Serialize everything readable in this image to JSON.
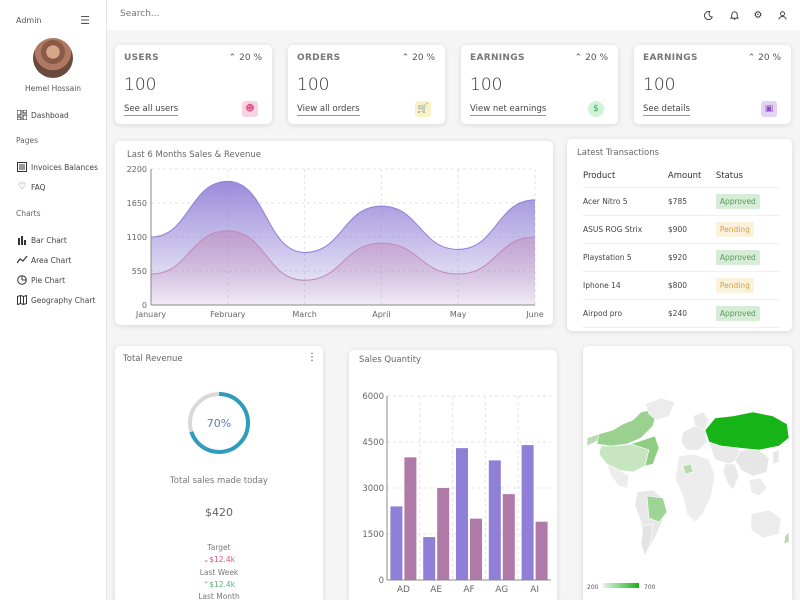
{
  "sidebar": {
    "brand": "Admin",
    "user_name": "Hemel Hossain",
    "items": [
      {
        "label": "Dashboad",
        "icon": "dashboard-icon"
      },
      {
        "label": "Invoices Balances",
        "icon": "invoice-icon"
      },
      {
        "label": "FAQ",
        "icon": "heart-icon"
      },
      {
        "label": "Bar Chart",
        "icon": "bar-chart-icon"
      },
      {
        "label": "Area Chart",
        "icon": "area-chart-icon"
      },
      {
        "label": "Pie Chart",
        "icon": "pie-chart-icon"
      },
      {
        "label": "Geography Chart",
        "icon": "map-icon"
      }
    ],
    "sections": [
      "Pages",
      "Charts"
    ]
  },
  "topbar": {
    "search_placeholder": "Search...",
    "icons": [
      "moon-icon",
      "notification-icon",
      "gear-icon",
      "user-icon"
    ]
  },
  "widgets": [
    {
      "title": "USERS",
      "percent": "20 %",
      "value": "100",
      "link": "See all users",
      "icon": "person-icon",
      "icon_bg": "#f9d3e3",
      "icon_color": "#e0568c"
    },
    {
      "title": "ORDERS",
      "percent": "20 %",
      "value": "100",
      "link": "View all orders",
      "icon": "cart-icon",
      "icon_bg": "#fbf1c7",
      "icon_color": "#c89a10"
    },
    {
      "title": "EARNINGS",
      "percent": "20 %",
      "value": "100",
      "link": "View net earnings",
      "icon": "money-icon",
      "icon_bg": "#d2f2d8",
      "icon_color": "#3ba55c"
    },
    {
      "title": "EARNINGS",
      "percent": "20 %",
      "value": "100",
      "link": "See details",
      "icon": "wallet-icon",
      "icon_bg": "#e4d2f3",
      "icon_color": "#8e4ec4"
    }
  ],
  "sales_chart": {
    "title": "Last 6 Months Sales & Revenue"
  },
  "transactions": {
    "title": "Latest Transactions",
    "headers": [
      "Product",
      "Amount",
      "Status"
    ],
    "rows": [
      {
        "product": "Acer Nitro 5",
        "amount": "$785",
        "status": "Approved"
      },
      {
        "product": "ASUS ROG Strix",
        "amount": "$900",
        "status": "Pending"
      },
      {
        "product": "Playstation 5",
        "amount": "$920",
        "status": "Approved"
      },
      {
        "product": "Iphone 14",
        "amount": "$800",
        "status": "Pending"
      },
      {
        "product": "Airpod pro",
        "amount": "$240",
        "status": "Approved"
      }
    ]
  },
  "total_revenue": {
    "title": "Total Revenue",
    "progress_label": "70%",
    "progress": 0.7,
    "subtitle": "Total sales made today",
    "amount": "$420",
    "target_label": "Target",
    "target_value": "$12.4k",
    "last_week_label": "Last Week",
    "last_week_value": "$12.4k",
    "last_month_label": "Last Month"
  },
  "sales_quantity": {
    "title": "Sales Quantity"
  },
  "geo": {
    "legend_min": "200",
    "legend_max": "700"
  },
  "chart_data": [
    {
      "type": "area",
      "x": [
        "January",
        "February",
        "March",
        "April",
        "May",
        "June"
      ],
      "series": [
        {
          "values": [
            1100,
            2000,
            850,
            1600,
            900,
            1700
          ],
          "color": "#8f7fd6"
        },
        {
          "values": [
            500,
            1200,
            400,
            1000,
            500,
            1100
          ],
          "color": "#c08ab8"
        }
      ],
      "ylim": [
        0,
        2200
      ],
      "yticks": [
        0,
        550,
        1100,
        1650,
        2200
      ],
      "title": "Last 6 Months Sales & Revenue"
    },
    {
      "type": "bar",
      "categories": [
        "AD",
        "AE",
        "AF",
        "AG",
        "AI"
      ],
      "series": [
        {
          "values": [
            2400,
            1400,
            4300,
            3900,
            4400
          ],
          "color": "#8f7fd6"
        },
        {
          "values": [
            4000,
            3000,
            2000,
            2800,
            1900
          ],
          "color": "#b07aa8"
        }
      ],
      "ylim": [
        0,
        6000
      ],
      "yticks": [
        0,
        1500,
        3000,
        4500,
        6000
      ],
      "title": "Sales Quantity"
    }
  ]
}
